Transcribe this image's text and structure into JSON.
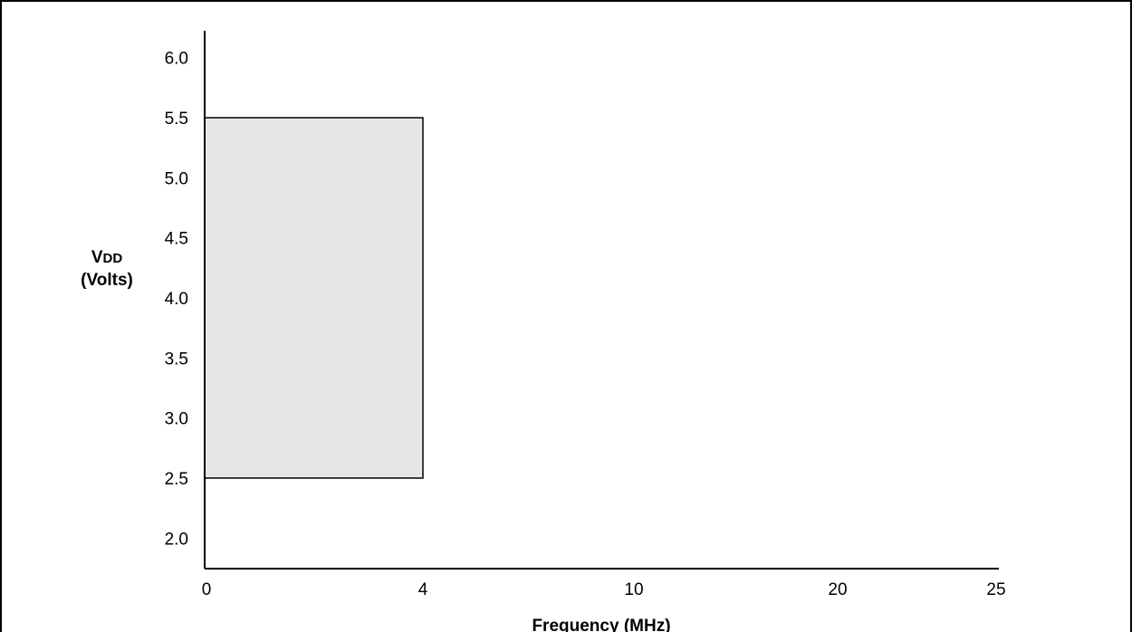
{
  "chart_data": {
    "type": "area",
    "xlabel": "Frequency (MHz)",
    "ylabel_main": "V",
    "ylabel_sub": "DD",
    "ylabel_units": "(Volts)",
    "x_ticks": [
      0,
      4,
      10,
      20,
      25
    ],
    "x_tick_labels": [
      "0",
      "4",
      "10",
      "20",
      "25"
    ],
    "y_ticks": [
      2.0,
      2.5,
      3.0,
      3.5,
      4.0,
      4.5,
      5.0,
      5.5,
      6.0
    ],
    "y_tick_labels": [
      "2.0",
      "2.5",
      "3.0",
      "3.5",
      "4.0",
      "4.5",
      "5.0",
      "5.5",
      "6.0"
    ],
    "ylim": [
      1.85,
      6.3
    ],
    "region": {
      "x_min": 0,
      "x_max": 4,
      "y_min": 2.5,
      "y_max": 5.5
    },
    "region_fill": "#e6e6e6",
    "grid": false
  }
}
